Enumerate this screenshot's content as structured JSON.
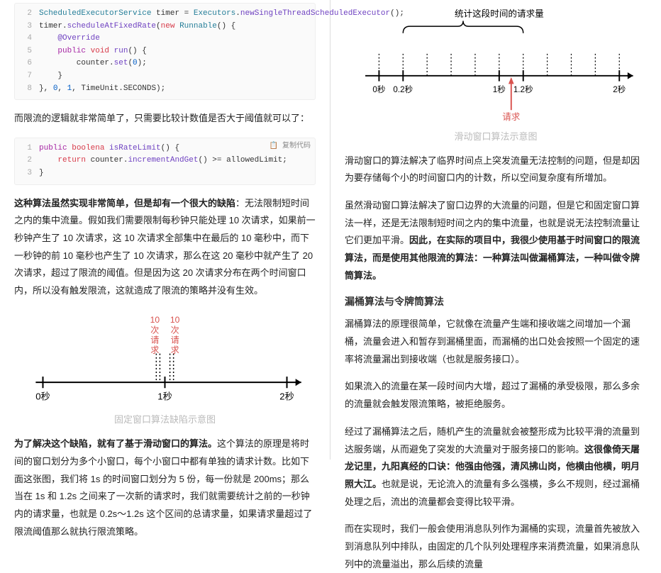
{
  "left": {
    "code1": {
      "lines": [
        {
          "n": "2",
          "html": "<span class='type'>ScheduledExecutorService</span> timer = <span class='type'>Executors</span>.<span class='fn'>newSingleThreadScheduledExecutor</span>();"
        },
        {
          "n": "3",
          "html": "timer.<span class='fn'>scheduleAtFixedRate</span>(<span class='kw2'>new</span> <span class='type'>Runnable</span>() {"
        },
        {
          "n": "4",
          "html": "    <span class='ann'>@Override</span>"
        },
        {
          "n": "5",
          "html": "    <span class='kw'>public</span> <span class='kw2'>void</span> <span class='fn'>run</span>() {"
        },
        {
          "n": "6",
          "html": "        counter.<span class='fn'>set</span>(<span class='num'>0</span>);"
        },
        {
          "n": "7",
          "html": "    }"
        },
        {
          "n": "8",
          "html": "}, <span class='num'>0</span>, <span class='num'>1</span>, TimeUnit.SECONDS);"
        }
      ]
    },
    "p1": "而限流的逻辑就非常简单了，只需要比较计数值是否大于阈值就可以了：",
    "copy_label": "复制代码",
    "code2": {
      "lines": [
        {
          "n": "1",
          "html": "<span class='kw'>public</span> <span class='kw2'>boolena</span> <span class='fn'>isRateLimit</span>() {"
        },
        {
          "n": "2",
          "html": "    <span class='kw2'>return</span> counter.<span class='fn'>incrementAndGet</span>() >= allowedLimit;"
        },
        {
          "n": "3",
          "html": "}"
        }
      ]
    },
    "p2_bold": "这种算法虽然实现非常简单，但是却有一个很大的缺陷",
    "p2_rest": "：无法限制短时间之内的集中流量。假如我们需要限制每秒钟只能处理 10 次请求，如果前一秒钟产生了 10 次请求，这 10 次请求全部集中在最后的 10 毫秒中，而下一秒钟的前 10 毫秒也产生了 10 次请求，那么在这 20 毫秒中就产生了 20 次请求，超过了限流的阈值。但是因为这 20 次请求分布在两个时间窗口内，所以没有触发限流，这就造成了限流的策略并没有生效。",
    "diagram1": {
      "label_left_top": "10",
      "label_left_mid": "次",
      "label_left_bot": "请",
      "label_left_last": "求",
      "label_right_top": "10",
      "label_right_mid": "次",
      "label_right_bot": "请",
      "label_right_last": "求",
      "ticks": [
        "0秒",
        "1秒",
        "2秒"
      ],
      "caption": "固定窗口算法缺陷示意图",
      "colors": {
        "axis": "#000",
        "request_text": "#d9534f",
        "tick": "#000"
      }
    },
    "p3_bold": "为了解决这个缺陷，就有了基于滑动窗口的算法。",
    "p3_rest": "这个算法的原理是将时间的窗口划分为多个小窗口，每个小窗口中都有单独的请求计数。比如下面这张图，我们将 1s 的时间窗口划分为 5 份，每一份就是 200ms；那么当在 1s 和 1.2s 之间来了一次新的请求时，我们就需要统计之前的一秒钟内的请求量，也就是 0.2s～1.2s 这个区间的总请求量，如果请求量超过了限流阈值那么就执行限流策略。"
  },
  "right": {
    "diagram2": {
      "top_label": "统计这段时间的请求量",
      "ticks": [
        "0秒",
        "0.2秒",
        "1秒",
        "1.2秒",
        "2秒"
      ],
      "request_label": "请求",
      "caption": "滑动窗口算法示意图",
      "colors": {
        "axis": "#000",
        "arrow": "#d9534f",
        "request_text": "#d9534f",
        "brace": "#000"
      }
    },
    "p1": "滑动窗口的算法解决了临界时间点上突发流量无法控制的问题，但是却因为要存储每个小的时间窗口内的计数，所以空间复杂度有所增加。",
    "p2a": "虽然滑动窗口算法解决了窗口边界的大流量的问题，但是它和固定窗口算法一样，还是无法限制短时间之内的集中流量，也就是说无法控制流量让它们更加平滑。",
    "p2b_bold": "因此，在实际的项目中，我很少使用基于时间窗口的限流算法，而是使用其他限流的算法：一种算法叫做漏桶算法，一种叫做令牌筒算法。",
    "h3": "漏桶算法与令牌筒算法",
    "p3": "漏桶算法的原理很简单，它就像在流量产生端和接收端之间增加一个漏桶，流量会进入和暂存到漏桶里面，而漏桶的出口处会按照一个固定的速率将流量漏出到接收端（也就是服务接口）。",
    "p4": "如果流入的流量在某一段时间内大增，超过了漏桶的承受极限，那么多余的流量就会触发限流策略，被拒绝服务。",
    "p5a": "经过了漏桶算法之后，随机产生的流量就会被整形成为比较平滑的流量到达服务端，从而避免了突发的大流量对于服务接口的影响。",
    "p5b_bold": "这很像倚天屠龙记里，九阳真经的口诀：他强由他强，清风拂山岗，他横由他横，明月照大江。",
    "p5c": "也就是说，无论流入的流量有多么强横，多么不规则，经过漏桶处理之后，流出的流量都会变得比较平滑。",
    "p6": "而在实现时，我们一般会使用消息队列作为漏桶的实现，流量首先被放入到消息队列中排队，由固定的几个队列处理程序来消费流量，如果消息队列中的流量溢出，那么后续的流量"
  }
}
